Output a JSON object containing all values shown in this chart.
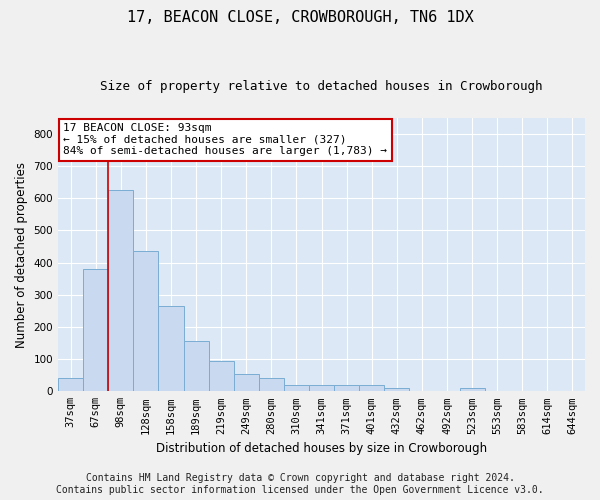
{
  "title": "17, BEACON CLOSE, CROWBOROUGH, TN6 1DX",
  "subtitle": "Size of property relative to detached houses in Crowborough",
  "xlabel": "Distribution of detached houses by size in Crowborough",
  "ylabel": "Number of detached properties",
  "categories": [
    "37sqm",
    "67sqm",
    "98sqm",
    "128sqm",
    "158sqm",
    "189sqm",
    "219sqm",
    "249sqm",
    "280sqm",
    "310sqm",
    "341sqm",
    "371sqm",
    "401sqm",
    "432sqm",
    "462sqm",
    "492sqm",
    "523sqm",
    "553sqm",
    "583sqm",
    "614sqm",
    "644sqm"
  ],
  "values": [
    40,
    380,
    625,
    435,
    265,
    155,
    95,
    55,
    40,
    20,
    20,
    20,
    20,
    10,
    0,
    0,
    10,
    0,
    0,
    0,
    0
  ],
  "bar_color": "#c9d9ef",
  "bar_edge_color": "#7aadd4",
  "vline_color": "#cc0000",
  "annotation_text": "17 BEACON CLOSE: 93sqm\n← 15% of detached houses are smaller (327)\n84% of semi-detached houses are larger (1,783) →",
  "annotation_box_color": "#ffffff",
  "annotation_box_edge_color": "#cc0000",
  "footer_text": "Contains HM Land Registry data © Crown copyright and database right 2024.\nContains public sector information licensed under the Open Government Licence v3.0.",
  "ylim": [
    0,
    850
  ],
  "yticks": [
    0,
    100,
    200,
    300,
    400,
    500,
    600,
    700,
    800
  ],
  "background_color": "#dce8f5",
  "grid_color": "#ffffff",
  "title_fontsize": 11,
  "subtitle_fontsize": 9,
  "tick_fontsize": 7.5,
  "label_fontsize": 8.5,
  "annotation_fontsize": 8,
  "footer_fontsize": 7
}
